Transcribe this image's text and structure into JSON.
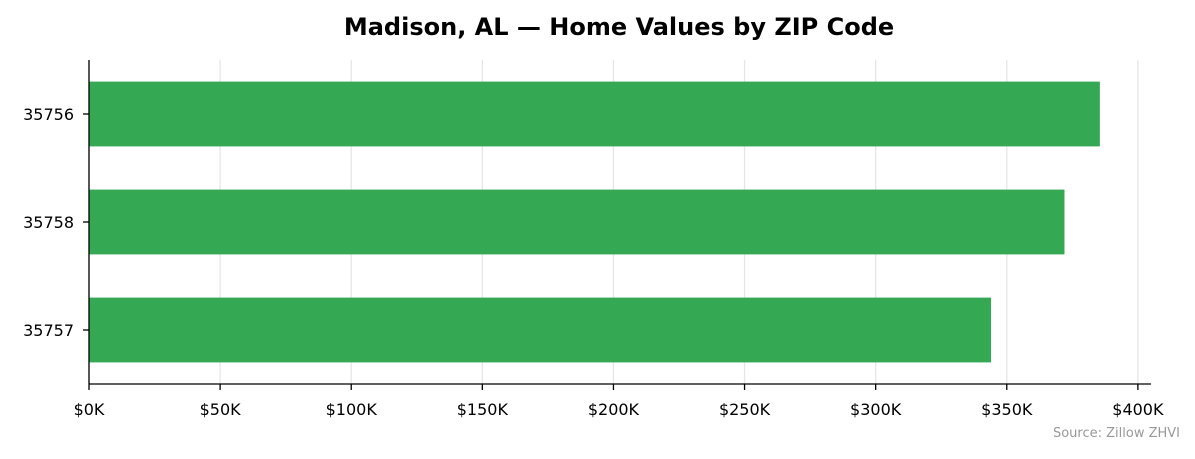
{
  "chart_data": {
    "type": "bar",
    "orientation": "horizontal",
    "title": "Madison, AL — Home Values by ZIP Code",
    "categories": [
      "35756",
      "35758",
      "35757"
    ],
    "values": [
      385500,
      372000,
      344000
    ],
    "xlim": [
      0,
      405000
    ],
    "x_ticks": [
      0,
      50000,
      100000,
      150000,
      200000,
      250000,
      300000,
      350000,
      400000
    ],
    "x_tick_labels": [
      "$0K",
      "$50K",
      "$100K",
      "$150K",
      "$200K",
      "$250K",
      "$300K",
      "$350K",
      "$400K"
    ],
    "xlabel": "",
    "ylabel": "",
    "grid": "vertical",
    "legend": "none",
    "bar_color": "#35a853",
    "source": "Source: Zillow ZHVI"
  }
}
